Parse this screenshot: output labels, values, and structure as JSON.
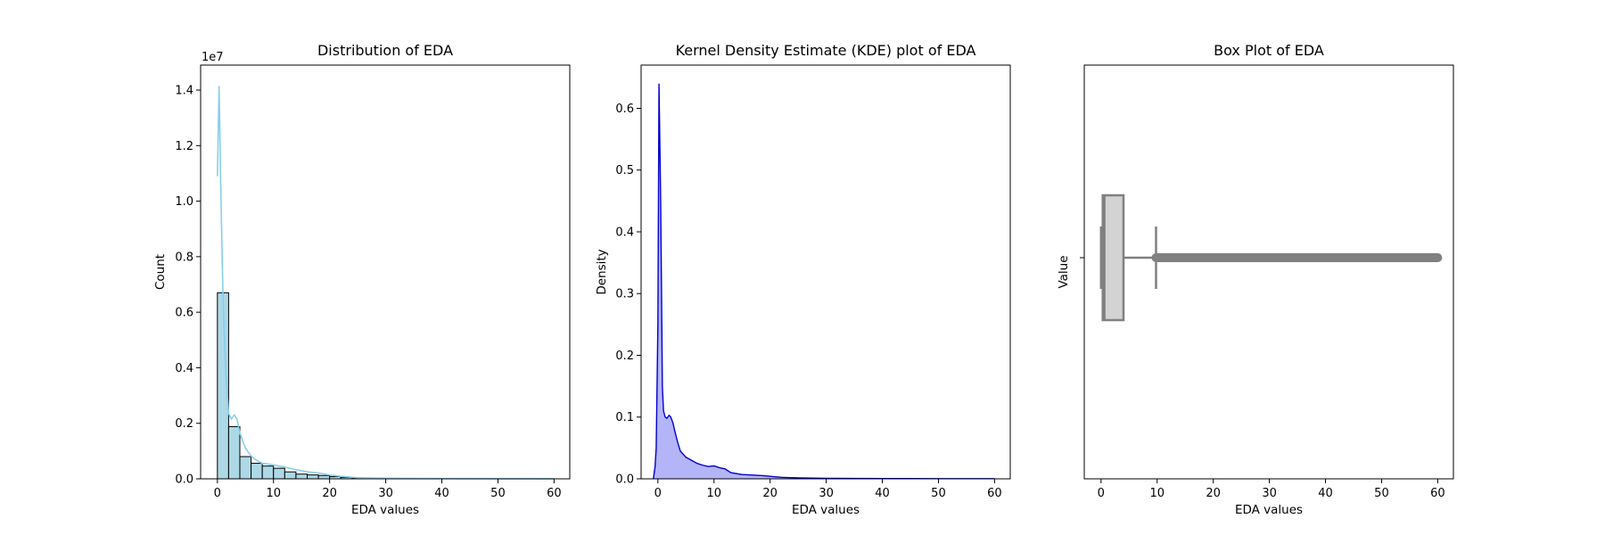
{
  "chart_data": [
    {
      "type": "bar",
      "title": "Distribution of EDA",
      "xlabel": "EDA values",
      "ylabel": "Count",
      "y_offset_text": "1e7",
      "xlim": [
        -2.99,
        62.8
      ],
      "ylim": [
        0,
        14900000
      ],
      "xticks": [
        0,
        10,
        20,
        30,
        40,
        50,
        60
      ],
      "yticks": [
        0,
        2000000,
        4000000,
        6000000,
        8000000,
        10000000,
        12000000,
        14000000
      ],
      "ytick_labels": [
        "0.0",
        "0.2",
        "0.4",
        "0.6",
        "0.8",
        "1.0",
        "1.2",
        "1.4"
      ],
      "bin_edges": [
        0,
        2,
        4,
        6,
        8,
        10,
        12,
        14,
        16,
        18,
        20,
        22,
        24,
        26,
        28,
        30,
        32,
        34,
        36,
        38,
        40,
        42,
        44,
        46,
        48,
        50,
        52,
        54,
        56,
        58,
        60
      ],
      "counts": [
        6700000,
        1880000,
        800000,
        560000,
        460000,
        380000,
        250000,
        170000,
        140000,
        120000,
        80000,
        50000,
        35000,
        25000,
        20000,
        15000,
        12000,
        10000,
        8000,
        7000,
        6000,
        5000,
        4000,
        3500,
        3000,
        2500,
        2000,
        1500,
        1000,
        800
      ],
      "kde_overlay": {
        "x": [
          0,
          0.3,
          0.6,
          1.0,
          1.5,
          2.0,
          2.5,
          3.0,
          3.5,
          4.0,
          5.0,
          6.0,
          7.0,
          8.0,
          10.0,
          12.0,
          14.0,
          16.0,
          18.0,
          20.0,
          22.0,
          25.0,
          30.0,
          35.0,
          40.0,
          50.0,
          60.0
        ],
        "y": [
          10900000,
          14150000,
          10500000,
          6500000,
          3800000,
          2350000,
          2150000,
          2300000,
          2150000,
          1650000,
          1100000,
          820000,
          660000,
          560000,
          500000,
          420000,
          330000,
          250000,
          210000,
          140000,
          90000,
          40000,
          20000,
          15000,
          10000,
          5000,
          3000
        ]
      },
      "colors": {
        "bar": "#add8e6",
        "bar_edge": "#000000",
        "kde": "#87ceeb"
      }
    },
    {
      "type": "area",
      "title": "Kernel Density Estimate (KDE) plot of EDA",
      "xlabel": "EDA values",
      "ylabel": "Density",
      "xlim": [
        -2.99,
        62.8
      ],
      "ylim": [
        0,
        0.67
      ],
      "xticks": [
        0,
        10,
        20,
        30,
        40,
        50,
        60
      ],
      "yticks": [
        0.0,
        0.1,
        0.2,
        0.3,
        0.4,
        0.5,
        0.6
      ],
      "ytick_labels": [
        "0.0",
        "0.1",
        "0.2",
        "0.3",
        "0.4",
        "0.5",
        "0.6"
      ],
      "x": [
        -0.8,
        -0.5,
        -0.3,
        0.0,
        0.2,
        0.5,
        0.8,
        1.0,
        1.3,
        1.6,
        2.0,
        2.3,
        2.7,
        3.0,
        3.5,
        4.0,
        5.0,
        6.0,
        7.0,
        8.0,
        9.0,
        10.0,
        11.0,
        12.0,
        13.0,
        15.0,
        17.0,
        19.0,
        20.0,
        22.0,
        25.0,
        30.0,
        40.0,
        50.0,
        60.0
      ],
      "y": [
        0.0,
        0.02,
        0.05,
        0.25,
        0.64,
        0.45,
        0.15,
        0.11,
        0.1,
        0.098,
        0.103,
        0.1,
        0.09,
        0.078,
        0.06,
        0.045,
        0.035,
        0.03,
        0.025,
        0.022,
        0.02,
        0.021,
        0.018,
        0.016,
        0.01,
        0.007,
        0.006,
        0.005,
        0.004,
        0.0025,
        0.0015,
        0.0008,
        0.0005,
        0.0003,
        0.0002
      ],
      "colors": {
        "line": "#0000cd",
        "fill": "#b4b4f8"
      }
    },
    {
      "type": "box",
      "title": "Box Plot of EDA",
      "xlabel": "EDA values",
      "ylabel": "Value",
      "xlim": [
        -2.99,
        62.8
      ],
      "xticks": [
        0,
        10,
        20,
        30,
        40,
        50,
        60
      ],
      "box": {
        "min": 0,
        "q1": 0.3,
        "median": 0.6,
        "q3": 4.0,
        "whisker_high": 9.8,
        "outliers_from": 9.8,
        "outliers_to": 60
      },
      "colors": {
        "box_fill": "#d3d3d3",
        "edge": "#808080"
      }
    }
  ]
}
